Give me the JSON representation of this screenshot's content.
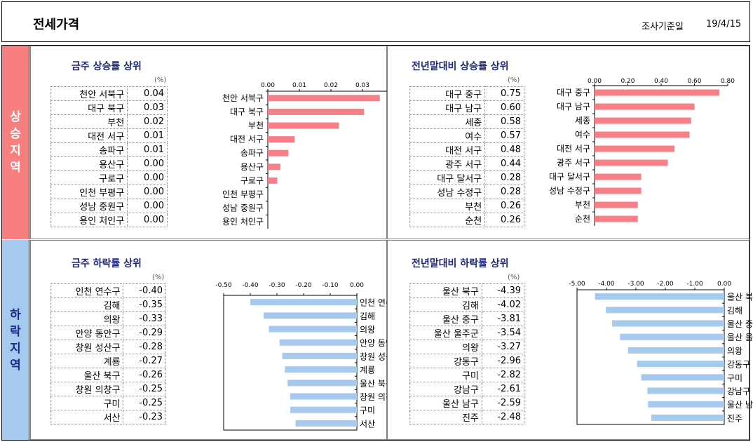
{
  "header": {
    "title": "전세가격",
    "survey_label": "조사기준일",
    "survey_date": "19/4/15"
  },
  "sections": {
    "rise_label": "상승지역",
    "fall_label": "하락지역"
  },
  "panels": [
    {
      "title": "금주 상승률 상위",
      "unit": "(%)",
      "rows": [
        {
          "name": "천안 서북구",
          "value": "0.04"
        },
        {
          "name": "대구 북구",
          "value": "0.03"
        },
        {
          "name": "부천",
          "value": "0.02"
        },
        {
          "name": "대전 서구",
          "value": "0.01"
        },
        {
          "name": "송파구",
          "value": "0.01"
        },
        {
          "name": "용산구",
          "value": "0.00"
        },
        {
          "name": "구로구",
          "value": "0.00"
        },
        {
          "name": "인천 부평구",
          "value": "0.00"
        },
        {
          "name": "성남 중원구",
          "value": "0.00"
        },
        {
          "name": "용인 처인구",
          "value": "0.00"
        }
      ]
    },
    {
      "title": "전년말대비 상승률 상위",
      "unit": "(%)",
      "rows": [
        {
          "name": "대구 중구",
          "value": "0.75"
        },
        {
          "name": "대구 남구",
          "value": "0.60"
        },
        {
          "name": "세종",
          "value": "0.58"
        },
        {
          "name": "여수",
          "value": "0.57"
        },
        {
          "name": "대전 서구",
          "value": "0.48"
        },
        {
          "name": "광주 서구",
          "value": "0.44"
        },
        {
          "name": "대구 달서구",
          "value": "0.28"
        },
        {
          "name": "성남 수정구",
          "value": "0.28"
        },
        {
          "name": "부천",
          "value": "0.26"
        },
        {
          "name": "순천",
          "value": "0.26"
        }
      ]
    },
    {
      "title": "금주 하락률 상위",
      "unit": "(%)",
      "rows": [
        {
          "name": "인천 연수구",
          "value": "-0.40"
        },
        {
          "name": "김해",
          "value": "-0.35"
        },
        {
          "name": "의왕",
          "value": "-0.33"
        },
        {
          "name": "안양 동안구",
          "value": "-0.29"
        },
        {
          "name": "창원 성산구",
          "value": "-0.28"
        },
        {
          "name": "계룡",
          "value": "-0.27"
        },
        {
          "name": "울산 북구",
          "value": "-0.26"
        },
        {
          "name": "창원 의창구",
          "value": "-0.25"
        },
        {
          "name": "구미",
          "value": "-0.25"
        },
        {
          "name": "서산",
          "value": "-0.23"
        }
      ]
    },
    {
      "title": "전년말대비 하락률 상위",
      "unit": "(%)",
      "rows": [
        {
          "name": "울산 북구",
          "value": "-4.39"
        },
        {
          "name": "김해",
          "value": "-4.02"
        },
        {
          "name": "울산 중구",
          "value": "-3.81"
        },
        {
          "name": "울산 울주군",
          "value": "-3.54"
        },
        {
          "name": "의왕",
          "value": "-3.27"
        },
        {
          "name": "강동구",
          "value": "-2.96"
        },
        {
          "name": "구미",
          "value": "-2.82"
        },
        {
          "name": "강남구",
          "value": "-2.61"
        },
        {
          "name": "울산 남구",
          "value": "-2.59"
        },
        {
          "name": "진주",
          "value": "-2.48"
        }
      ]
    }
  ],
  "chart_data": [
    {
      "type": "bar",
      "orientation": "horizontal",
      "title": "금주 상승률 상위",
      "categories": [
        "천안 서북구",
        "대구 북구",
        "부천",
        "대전 서구",
        "송파구",
        "용산구",
        "구로구",
        "인천 부평구",
        "성남 중원구",
        "용인 처인구"
      ],
      "values": [
        0.0355,
        0.0305,
        0.0225,
        0.0085,
        0.0065,
        0.004,
        0.003,
        0.0,
        0.0,
        0.0
      ],
      "xlim": [
        0,
        0.04
      ],
      "ticks": [
        "0.00",
        "0.01",
        "0.02",
        "0.03",
        "0.04"
      ],
      "color": "#f77f87"
    },
    {
      "type": "bar",
      "orientation": "horizontal",
      "title": "전년말대비 상승률 상위",
      "categories": [
        "대구 중구",
        "대구 남구",
        "세종",
        "여수",
        "대전 서구",
        "광주 서구",
        "대구 달서구",
        "성남 수정구",
        "부천",
        "순천"
      ],
      "values": [
        0.75,
        0.6,
        0.58,
        0.57,
        0.48,
        0.44,
        0.28,
        0.28,
        0.26,
        0.26
      ],
      "xlim": [
        0,
        0.8
      ],
      "ticks": [
        "0.00",
        "0.20",
        "0.40",
        "0.60",
        "0.80"
      ],
      "color": "#f77f87"
    },
    {
      "type": "bar",
      "orientation": "horizontal",
      "title": "금주 하락률 상위",
      "categories": [
        "인천 연수구",
        "김해",
        "의왕",
        "안양 동안구",
        "창원 성산구",
        "계룡",
        "울산 북구",
        "창원 의창구",
        "구미",
        "서산"
      ],
      "values": [
        -0.4,
        -0.35,
        -0.33,
        -0.29,
        -0.28,
        -0.27,
        -0.26,
        -0.25,
        -0.25,
        -0.23
      ],
      "xlim": [
        -0.5,
        0
      ],
      "ticks": [
        "-0.50",
        "-0.40",
        "-0.30",
        "-0.20",
        "-0.10",
        "0.00"
      ],
      "color": "#a6c9ee"
    },
    {
      "type": "bar",
      "orientation": "horizontal",
      "title": "전년말대비 하락률 상위",
      "categories": [
        "울산 북구",
        "김해",
        "울산 중구",
        "울산 울주군",
        "의왕",
        "강동구",
        "구미",
        "강남구",
        "울산 남구",
        "진주"
      ],
      "values": [
        -4.39,
        -4.02,
        -3.81,
        -3.54,
        -3.27,
        -2.96,
        -2.82,
        -2.61,
        -2.59,
        -2.48
      ],
      "xlim": [
        -5,
        0
      ],
      "ticks": [
        "-5.00",
        "-4.00",
        "-3.00",
        "-2.00",
        "-1.00",
        "0.00"
      ],
      "color": "#a6c9ee"
    }
  ]
}
